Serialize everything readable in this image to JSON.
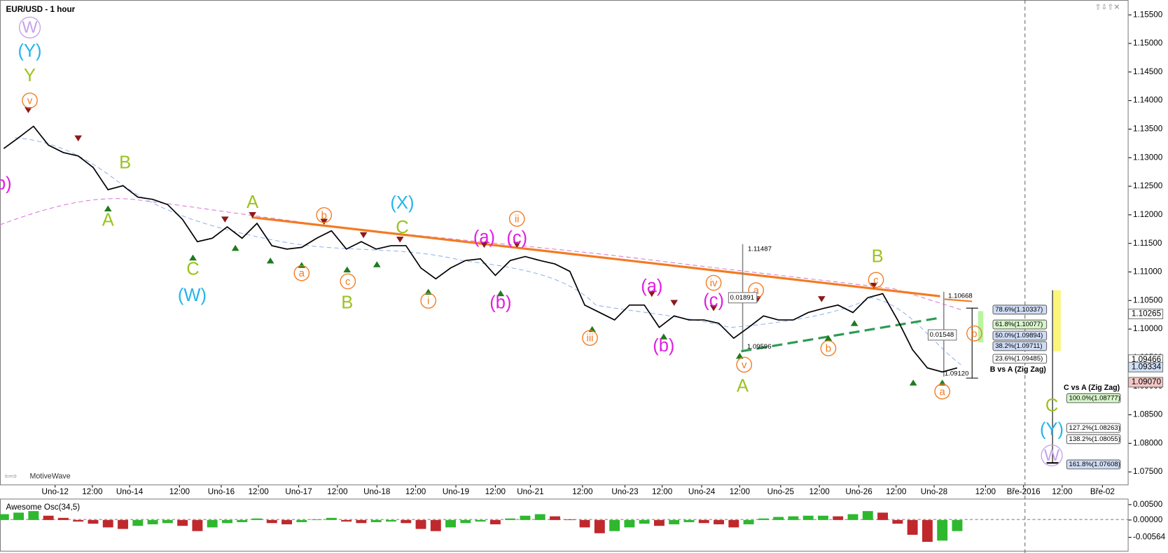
{
  "chart_data": {
    "type": "line",
    "title": "EUR/USD - 1 hour",
    "watermark": "MotiveWave",
    "ylim": [
      1.07292,
      1.15695
    ],
    "yticks": [
      {
        "value": 1.155,
        "label": "1.15500"
      },
      {
        "value": 1.15,
        "label": "1.15000"
      },
      {
        "value": 1.145,
        "label": "1.14500"
      },
      {
        "value": 1.14,
        "label": "1.14000"
      },
      {
        "value": 1.135,
        "label": "1.13500"
      },
      {
        "value": 1.13,
        "label": "1.13000"
      },
      {
        "value": 1.125,
        "label": "1.12500"
      },
      {
        "value": 1.12,
        "label": "1.12000"
      },
      {
        "value": 1.115,
        "label": "1.11500"
      },
      {
        "value": 1.11,
        "label": "1.11000"
      },
      {
        "value": 1.105,
        "label": "1.10500"
      },
      {
        "value": 1.1,
        "label": "1.10000"
      },
      {
        "value": 1.095,
        "label": "1.09500"
      },
      {
        "value": 1.09,
        "label": "1.09000"
      },
      {
        "value": 1.085,
        "label": "1.08500"
      },
      {
        "value": 1.08,
        "label": "1.08000"
      },
      {
        "value": 1.075,
        "label": "1.07500"
      }
    ],
    "price_labels": [
      {
        "value": 1.10265,
        "label": "1.10265",
        "color": "#ffffff"
      },
      {
        "value": 1.09466,
        "label": "1.09466",
        "color": "#ffffff"
      },
      {
        "value": 1.09334,
        "label": "1.09334",
        "color": "#cfe0f7"
      },
      {
        "value": 1.0907,
        "label": "1.09070",
        "color": "#f4c6c6"
      }
    ],
    "x_tick_labels": [
      "Uno-12",
      "12:00",
      "Uno-14",
      "12:00",
      "Uno-16",
      "12:00",
      "Uno-17",
      "12:00",
      "Uno-18",
      "12:00",
      "Uno-19",
      "12:00",
      "Uno-21",
      "12:00",
      "Uno-23",
      "12:00",
      "Uno-24",
      "12:00",
      "Uno-25",
      "12:00",
      "Uno-26",
      "12:00",
      "Uno-28",
      "12:00",
      "Bře-2016",
      "12:00",
      "Bře-02"
    ],
    "price": {
      "color": "#000000",
      "values": [
        1.1316,
        1.1335,
        1.1355,
        1.1322,
        1.1309,
        1.1303,
        1.1283,
        1.1244,
        1.1251,
        1.1231,
        1.1227,
        1.1218,
        1.1192,
        1.1153,
        1.1159,
        1.1179,
        1.1159,
        1.1185,
        1.1146,
        1.114,
        1.1143,
        1.1159,
        1.1172,
        1.114,
        1.1153,
        1.114,
        1.1146,
        1.1146,
        1.1107,
        1.1088,
        1.1107,
        1.112,
        1.1123,
        1.1094,
        1.112,
        1.1127,
        1.112,
        1.1114,
        1.1101,
        1.1042,
        1.1029,
        1.1016,
        1.1042,
        1.1042,
        1.1003,
        1.1023,
        1.1016,
        1.1016,
        1.101,
        1.0984,
        1.1003,
        1.1023,
        1.1016,
        1.1016,
        1.1029,
        1.1036,
        1.1042,
        1.1029,
        1.1055,
        1.1062,
        1.1016,
        1.0964,
        1.0932,
        1.0925,
        1.0932
      ]
    },
    "oscillator": {
      "title": "Awesome Osc(34,5)",
      "up_color": "#2eb82e",
      "down_color": "#c0282c",
      "ylim": [
        -0.01,
        0.0067
      ],
      "yticks": [
        {
          "value": 0.005,
          "label": "0.00500"
        },
        {
          "value": 0,
          "label": "0.00000"
        },
        {
          "value": -0.00564,
          "label": "-0.00564"
        }
      ],
      "values": [
        0.0019,
        0.0024,
        0.0029,
        0.0014,
        0.0007,
        -0.0005,
        -0.0012,
        -0.0024,
        -0.0029,
        -0.0019,
        -0.0014,
        -0.001,
        -0.0019,
        -0.0036,
        -0.0024,
        -0.001,
        -0.0007,
        0.0005,
        -0.001,
        -0.0014,
        -0.0007,
        0.0002,
        0.0007,
        -0.0005,
        -0.001,
        -0.0007,
        -0.0005,
        -0.001,
        -0.0029,
        -0.0036,
        -0.0024,
        -0.001,
        -0.0005,
        -0.0014,
        0.0005,
        0.0014,
        0.0019,
        0.0012,
        0.0002,
        -0.0024,
        -0.0043,
        -0.0036,
        -0.0024,
        -0.0012,
        -0.0019,
        -0.0014,
        -0.0007,
        -0.001,
        -0.0014,
        -0.0024,
        -0.0014,
        0.0005,
        0.001,
        0.0012,
        0.0014,
        0.0014,
        0.0012,
        0.0019,
        0.0029,
        0.0024,
        -0.0012,
        -0.0048,
        -0.0071,
        -0.0067,
        -0.0036
      ]
    },
    "wave_labels": [
      {
        "text": "W",
        "color": "#c8a2e8",
        "circled": true
      },
      {
        "text": "(Y)",
        "color": "#22b5ea",
        "circled": false
      },
      {
        "text": "Y",
        "color": "#9bc31c",
        "circled": false
      },
      {
        "text": "v",
        "color": "#f47a20",
        "circled": true
      },
      {
        "text": "b)",
        "color": "#e01ee0",
        "circled": false
      },
      {
        "text": "B",
        "color": "#9bc31c",
        "circled": false
      },
      {
        "text": "A",
        "color": "#9bc31c",
        "circled": false
      },
      {
        "text": "C",
        "color": "#9bc31c",
        "circled": false
      },
      {
        "text": "(W)",
        "color": "#22b5ea",
        "circled": false
      },
      {
        "text": "A",
        "color": "#9bc31c",
        "circled": false
      },
      {
        "text": "b",
        "color": "#f47a20",
        "circled": true
      },
      {
        "text": "a",
        "color": "#f47a20",
        "circled": true
      },
      {
        "text": "c",
        "color": "#f47a20",
        "circled": true
      },
      {
        "text": "B",
        "color": "#9bc31c",
        "circled": false
      },
      {
        "text": "(X)",
        "color": "#22b5ea",
        "circled": false
      },
      {
        "text": "C",
        "color": "#9bc31c",
        "circled": false
      },
      {
        "text": "(a)",
        "color": "#e01ee0",
        "circled": false
      },
      {
        "text": "(c)",
        "color": "#e01ee0",
        "circled": false
      },
      {
        "text": "ii",
        "color": "#f47a20",
        "circled": true
      },
      {
        "text": "i",
        "color": "#f47a20",
        "circled": true
      },
      {
        "text": "(b)",
        "color": "#e01ee0",
        "circled": false
      },
      {
        "text": "iii",
        "color": "#f47a20",
        "circled": true
      },
      {
        "text": "(a)",
        "color": "#e01ee0",
        "circled": false
      },
      {
        "text": "(b)",
        "color": "#e01ee0",
        "circled": false
      },
      {
        "text": "iv",
        "color": "#f47a20",
        "circled": true
      },
      {
        "text": "(c)",
        "color": "#e01ee0",
        "circled": false
      },
      {
        "text": "a",
        "color": "#f47a20",
        "circled": true
      },
      {
        "text": "v",
        "color": "#f47a20",
        "circled": true
      },
      {
        "text": "A",
        "color": "#9bc31c",
        "circled": false
      },
      {
        "text": "b",
        "color": "#f47a20",
        "circled": true
      },
      {
        "text": "B",
        "color": "#9bc31c",
        "circled": false
      },
      {
        "text": "c",
        "color": "#f47a20",
        "circled": true
      },
      {
        "text": "b",
        "color": "#f47a20",
        "circled": true
      },
      {
        "text": "a",
        "color": "#f47a20",
        "circled": true
      },
      {
        "text": "C",
        "color": "#9bc31c",
        "circled": false
      },
      {
        "text": "(Y)",
        "color": "#22b5ea",
        "circled": false
      },
      {
        "text": "W",
        "color": "#c8a2e8",
        "circled": true
      }
    ],
    "fib_labels": [
      {
        "text": "78.6%(1.10337)",
        "color": "#cfdcf5"
      },
      {
        "text": "61.8%(1.10077)",
        "color": "#d6f5c8"
      },
      {
        "text": "50.0%(1.09894)",
        "color": "#cfdcf5"
      },
      {
        "text": "38.2%(1.09711)",
        "color": "#cfdcf5"
      },
      {
        "text": "23.6%(1.09485)",
        "color": "#ffffff"
      },
      {
        "text": "100.0%(1.08777)",
        "color": "#d6f5c8"
      },
      {
        "text": "127.2%(1.08263)",
        "color": "#ffffff"
      },
      {
        "text": "138.2%(1.08055)",
        "color": "#ffffff"
      },
      {
        "text": "161.8%(1.07608)",
        "color": "#cfdcf5"
      }
    ],
    "fib_titles": [
      "B vs A (Zig Zag)",
      "C vs A (Zig Zag)"
    ],
    "measure_labels": [
      "1.11487",
      "0.01891",
      "1.09596",
      "1.10668",
      "0.01548",
      "1.09120"
    ]
  }
}
